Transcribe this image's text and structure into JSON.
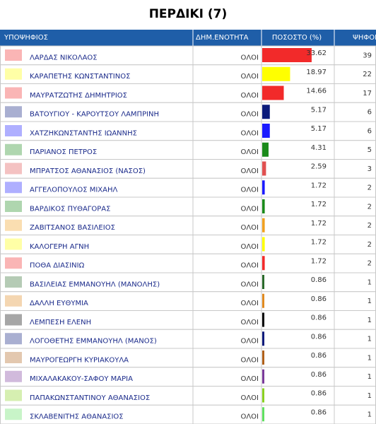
{
  "title": "ΠΕΡΔΙΚΙ (7)",
  "table": {
    "headers": [
      "ΥΠΟΨΗΦΙΟΣ",
      "ΔΗΜ.ΕΝΟΤΗΤΑ",
      "ΠΟΣΟΣΤΟ (%)",
      "ΨΗΦΟΙ"
    ],
    "rows": [
      {
        "candidate": "ΛΑΡΔΑΣ ΝΙΚΟΛΑΟΣ",
        "area": "ΟΛΟΙ",
        "percent": 33.62,
        "votes": 39,
        "color": "#f22a2a"
      },
      {
        "candidate": "ΚΑΡΑΠΕΤΗΣ ΚΩΝΣΤΑΝΤΙΝΟΣ",
        "area": "ΟΛΟΙ",
        "percent": 18.97,
        "votes": 22,
        "color": "#ffff00"
      },
      {
        "candidate": "ΜΑΥΡΑΤΖΩΤΗΣ ΔΗΜΗΤΡΙΟΣ",
        "area": "ΟΛΟΙ",
        "percent": 14.66,
        "votes": 17,
        "color": "#f22a2a"
      },
      {
        "candidate": "ΒΑΤΟΥΓΙΟΥ - ΚΑΡΟΥΤΣΟΥ ΛΑΜΠΡΙΝΗ",
        "area": "ΟΛΟΙ",
        "percent": 5.17,
        "votes": 6,
        "color": "#0a1a7a"
      },
      {
        "candidate": "ΧΑΤΖΗΚΩΝΣΤΑΝΤΗΣ ΙΩΑΝΝΗΣ",
        "area": "ΟΛΟΙ",
        "percent": 5.17,
        "votes": 6,
        "color": "#1a1aff"
      },
      {
        "candidate": "ΠΑΡΙΑΝΟΣ ΠΕΤΡΟΣ",
        "area": "ΟΛΟΙ",
        "percent": 4.31,
        "votes": 5,
        "color": "#1a8a1a"
      },
      {
        "candidate": "ΜΠΡΑΤΣΟΣ ΑΘΑΝΑΣΙΟΣ (ΝΑΣΟΣ)",
        "area": "ΟΛΟΙ",
        "percent": 2.59,
        "votes": 3,
        "color": "#e05050"
      },
      {
        "candidate": "ΑΓΓΕΛΟΠΟΥΛΟΣ ΜΙΧΑΗΛ",
        "area": "ΟΛΟΙ",
        "percent": 1.72,
        "votes": 2,
        "color": "#1a1aff"
      },
      {
        "candidate": "ΒΑΡΔΙΚΟΣ ΠΥΘΑΓΟΡΑΣ",
        "area": "ΟΛΟΙ",
        "percent": 1.72,
        "votes": 2,
        "color": "#1a8a1a"
      },
      {
        "candidate": "ΖΑΒΙΤΣΑΝΟΣ ΒΑΣΙΛΕΙΟΣ",
        "area": "ΟΛΟΙ",
        "percent": 1.72,
        "votes": 2,
        "color": "#f0a020"
      },
      {
        "candidate": "ΚΑΛΟΓΕΡΗ ΑΓΝΗ",
        "area": "ΟΛΟΙ",
        "percent": 1.72,
        "votes": 2,
        "color": "#ffff00"
      },
      {
        "candidate": "ΠΟΘΑ ΔΙΑΣΙΝΙΩ",
        "area": "ΟΛΟΙ",
        "percent": 1.72,
        "votes": 2,
        "color": "#f22a2a"
      },
      {
        "candidate": "ΒΑΣΙΛΕΙΑΣ ΕΜΜΑΝΟΥΗΛ (ΜΑΝΟΛΗΣ)",
        "area": "ΟΛΟΙ",
        "percent": 0.86,
        "votes": 1,
        "color": "#2a6a2a"
      },
      {
        "candidate": "ΔΑΛΛΗ ΕΥΘΥΜΙΑ",
        "area": "ΟΛΟΙ",
        "percent": 0.86,
        "votes": 1,
        "color": "#e08a20"
      },
      {
        "candidate": "ΛΕΜΠΕΣΗ ΕΛΕΝΗ",
        "area": "ΟΛΟΙ",
        "percent": 0.86,
        "votes": 1,
        "color": "#000000"
      },
      {
        "candidate": "ΛΟΓΟΘΕΤΗΣ ΕΜΜΑΝΟΥΗΛ (ΜΑΝΟΣ)",
        "area": "ΟΛΟΙ",
        "percent": 0.86,
        "votes": 1,
        "color": "#0a1a7a"
      },
      {
        "candidate": "ΜΑΥΡΟΓΕΩΡΓΗ ΚΥΡΙΑΚΟΥΛΑ",
        "area": "ΟΛΟΙ",
        "percent": 0.86,
        "votes": 1,
        "color": "#b0601a"
      },
      {
        "candidate": "ΜΙΧΑΛΑΚΑΚΟΥ-ΣΑΦΟΥ ΜΑΡΙΑ",
        "area": "ΟΛΟΙ",
        "percent": 0.86,
        "votes": 1,
        "color": "#7a3a9a"
      },
      {
        "candidate": "ΠΑΠΑΚΩΝΣΤΑΝΤΙΝΟΥ ΑΘΑΝΑΣΙΟΣ",
        "area": "ΟΛΟΙ",
        "percent": 0.86,
        "votes": 1,
        "color": "#8ad020"
      },
      {
        "candidate": "ΣΚΛΑΒΕΝΙΤΗΣ ΑΘΑΝΑΣΙΟΣ",
        "area": "ΟΛΟΙ",
        "percent": 0.86,
        "votes": 1,
        "color": "#60e060"
      }
    ]
  }
}
